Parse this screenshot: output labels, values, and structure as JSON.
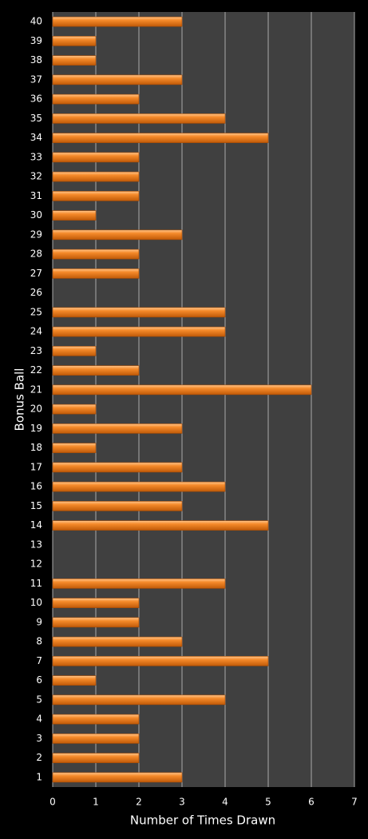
{
  "chart_data": {
    "type": "bar",
    "orientation": "horizontal",
    "x_label": "Number of Times Drawn",
    "y_label": "Bonus Ball",
    "categories": [
      "1",
      "2",
      "3",
      "4",
      "5",
      "6",
      "7",
      "8",
      "9",
      "10",
      "11",
      "12",
      "13",
      "14",
      "15",
      "16",
      "17",
      "18",
      "19",
      "20",
      "21",
      "22",
      "23",
      "24",
      "25",
      "26",
      "27",
      "28",
      "29",
      "30",
      "31",
      "32",
      "33",
      "34",
      "35",
      "36",
      "37",
      "38",
      "39",
      "40"
    ],
    "values": [
      3,
      2,
      2,
      2,
      4,
      1,
      5,
      3,
      2,
      2,
      4,
      0,
      0,
      5,
      3,
      4,
      3,
      1,
      3,
      1,
      6,
      2,
      1,
      4,
      4,
      0,
      2,
      2,
      3,
      1,
      2,
      2,
      2,
      5,
      4,
      2,
      3,
      1,
      1,
      3
    ],
    "color": "#f07c1e",
    "xlim": [
      0,
      7
    ],
    "xticks": [
      0,
      1,
      2,
      3,
      4,
      5,
      6,
      7
    ],
    "grid": true
  }
}
